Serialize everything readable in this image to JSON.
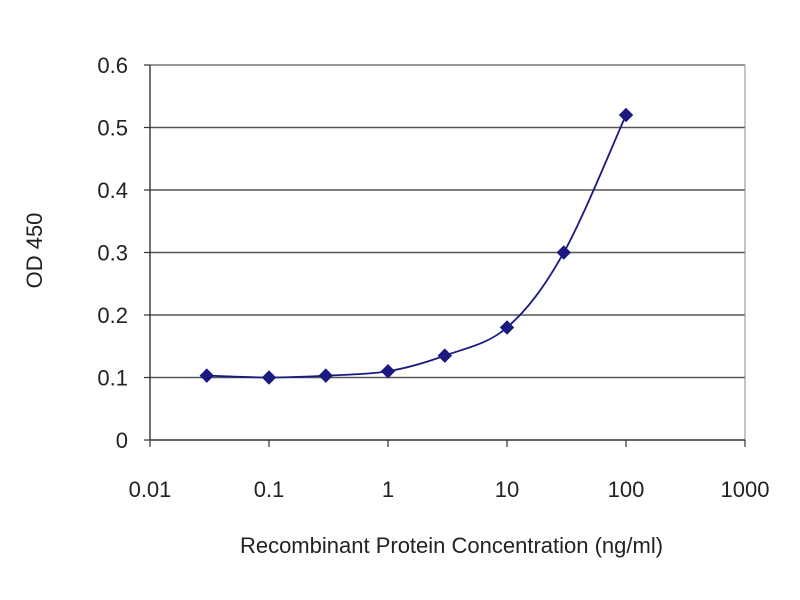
{
  "chart_data": {
    "type": "line",
    "title": "",
    "xlabel": "Recombinant Protein Concentration (ng/ml)",
    "ylabel": "OD 450",
    "x_scale": "log",
    "xlim": [
      0.01,
      1000
    ],
    "ylim": [
      0,
      0.6
    ],
    "x_ticks": [
      "0.01",
      "0.1",
      "1",
      "10",
      "100",
      "1000"
    ],
    "y_ticks": [
      "0",
      "0.1",
      "0.2",
      "0.3",
      "0.4",
      "0.5",
      "0.6"
    ],
    "grid": "horizontal",
    "legend": "none",
    "series": [
      {
        "x": [
          0.03,
          0.1,
          0.3,
          1,
          3,
          10,
          30,
          100
        ],
        "y": [
          0.103,
          0.1,
          0.103,
          0.11,
          0.135,
          0.18,
          0.3,
          0.52
        ],
        "color": "#1a1a80",
        "marker": "diamond"
      }
    ]
  },
  "colors": {
    "gridline": "#555555",
    "axis": "#333333",
    "frame": "#888888",
    "series": "#1a1a80"
  }
}
